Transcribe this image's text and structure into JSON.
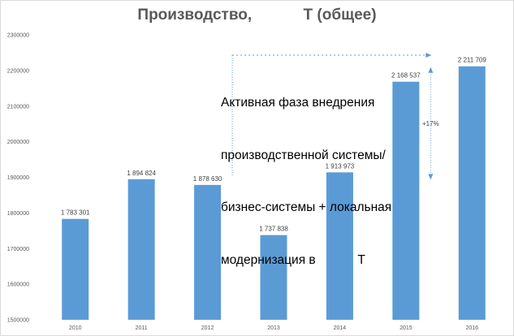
{
  "chart_data": {
    "type": "bar",
    "title": "Производство,            Т (общее)",
    "categories": [
      "2010",
      "2011",
      "2012",
      "2013",
      "2014",
      "2015",
      "2016"
    ],
    "values": [
      1783301,
      1894824,
      1878630,
      1737838,
      1913973,
      2168537,
      2211709
    ],
    "data_labels": [
      "1 783 301",
      "1 894 824",
      "1 878 630",
      "1 737 838",
      "1 913 973",
      "2 168 537",
      "2 211 709"
    ],
    "ylim": [
      1500000,
      2300000
    ],
    "yticks": [
      "1500000",
      "1600000",
      "1700000",
      "1800000",
      "1900000",
      "2000000",
      "2100000",
      "2200000",
      "2300000"
    ],
    "grid": false,
    "bar_color": "#5b9bd5",
    "annotation": {
      "lines": [
        "Активная фаза внедрения",
        "производственной системы/",
        "бизнес-системы + локальная",
        "модернизация в            Т"
      ],
      "start_category": "2012"
    },
    "growth_label": "+17%",
    "accent_color": "#5b9bd5"
  }
}
